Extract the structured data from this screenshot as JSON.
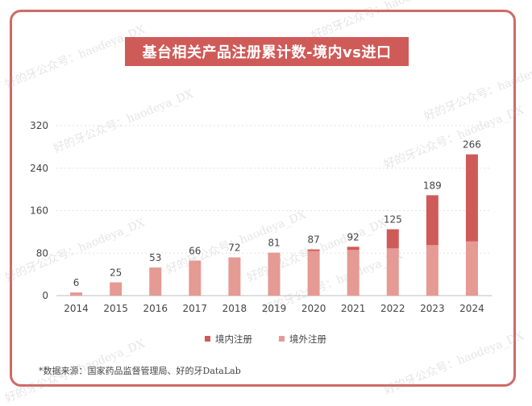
{
  "title": "基台相关产品注册累计数-境内vs进口",
  "footnote": "*数据来源：国家药品监督管理局、好的牙DataLab",
  "watermark": "好的牙公众号：haodeya_DX",
  "colors": {
    "domestic": "#cf5b58",
    "imported": "#e59a94",
    "frame": "#cf6a66",
    "title_bg": "#cf5b58"
  },
  "chart_data": {
    "type": "bar",
    "stacked": true,
    "categories": [
      "2014",
      "2015",
      "2016",
      "2017",
      "2018",
      "2019",
      "2020",
      "2021",
      "2022",
      "2023",
      "2024"
    ],
    "totals": [
      6,
      25,
      53,
      66,
      72,
      81,
      87,
      92,
      125,
      189,
      266
    ],
    "series": [
      {
        "name": "境内注册",
        "color": "#cf5b58",
        "values": [
          0,
          0,
          0,
          0,
          0,
          0,
          3,
          6,
          36,
          94,
          164
        ]
      },
      {
        "name": "境外注册",
        "color": "#e59a94",
        "values": [
          6,
          25,
          53,
          66,
          72,
          81,
          84,
          86,
          89,
          95,
          102
        ]
      }
    ],
    "yticks": [
      0,
      80,
      160,
      240,
      320
    ],
    "ylim": [
      0,
      320
    ],
    "grid": true,
    "legend_position": "bottom"
  }
}
